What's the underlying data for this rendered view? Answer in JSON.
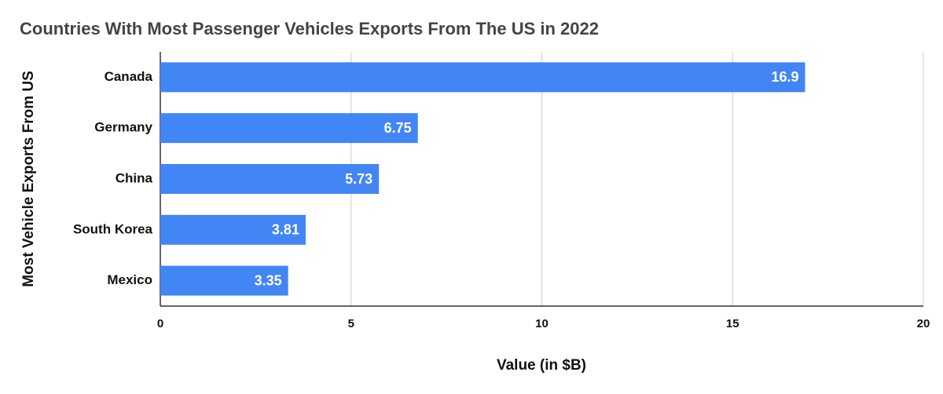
{
  "chart_data": {
    "type": "bar",
    "title": "Countries With Most Passenger Vehicles Exports From The US in 2022",
    "x_label": "Value (in $B)",
    "y_label": "Most Vehicle Exports From US",
    "categories": [
      "Canada",
      "Germany",
      "China",
      "South Korea",
      "Mexico"
    ],
    "values": [
      16.9,
      6.75,
      5.73,
      3.81,
      3.35
    ],
    "color": "#4285f4",
    "xlim": [
      0,
      20
    ],
    "xticks": [
      0,
      5,
      10,
      15,
      20
    ],
    "grid": true
  }
}
